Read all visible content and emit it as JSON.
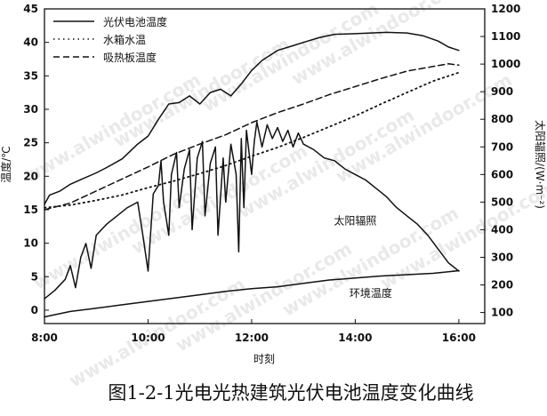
{
  "watermark": "www.alwindoor.com",
  "caption": "图1-2-1光电光热建筑光伏电池温度变化曲线",
  "chart_data": {
    "type": "line",
    "xlabel": "时刻",
    "ylabel_left": "温度/℃",
    "ylabel_right": "太阳辐照/(W·m⁻²)",
    "xlim": [
      8,
      16.5
    ],
    "ylim_left": [
      -2,
      45
    ],
    "ylim_right": [
      60,
      1200
    ],
    "x_ticks": [
      {
        "v": 8,
        "label": "8:00"
      },
      {
        "v": 10,
        "label": "10:00"
      },
      {
        "v": 12,
        "label": "12:00"
      },
      {
        "v": 14,
        "label": "14:00"
      },
      {
        "v": 16,
        "label": "16:00"
      }
    ],
    "y_ticks_left": [
      0,
      5,
      10,
      15,
      20,
      25,
      30,
      35,
      40,
      45
    ],
    "y_ticks_right": [
      100,
      200,
      300,
      400,
      500,
      600,
      700,
      800,
      900,
      1000,
      1100,
      1200
    ],
    "legend": [
      {
        "name": "光伏电池温度",
        "style": "solid"
      },
      {
        "name": "水箱水温",
        "style": "dotted"
      },
      {
        "name": "吸热板温度",
        "style": "dashed"
      }
    ],
    "annotations": [
      {
        "text": "太阳辐照",
        "x": 14.0,
        "y": 12.8
      },
      {
        "text": "环境温度",
        "x": 14.3,
        "y": 2.0
      }
    ],
    "series": [
      {
        "name": "光伏电池温度",
        "axis": "left",
        "style": "solid",
        "points": [
          [
            8.0,
            15.8
          ],
          [
            8.1,
            17.2
          ],
          [
            8.3,
            17.8
          ],
          [
            8.5,
            18.8
          ],
          [
            8.7,
            19.5
          ],
          [
            9.0,
            20.5
          ],
          [
            9.2,
            21.3
          ],
          [
            9.5,
            22.6
          ],
          [
            9.8,
            24.8
          ],
          [
            10.0,
            26.0
          ],
          [
            10.2,
            28.5
          ],
          [
            10.4,
            30.8
          ],
          [
            10.6,
            31.0
          ],
          [
            10.8,
            32.0
          ],
          [
            11.0,
            30.8
          ],
          [
            11.2,
            32.5
          ],
          [
            11.4,
            33.0
          ],
          [
            11.6,
            32.0
          ],
          [
            11.8,
            33.8
          ],
          [
            12.0,
            35.8
          ],
          [
            12.2,
            37.3
          ],
          [
            12.5,
            38.8
          ],
          [
            12.8,
            39.5
          ],
          [
            13.0,
            40.0
          ],
          [
            13.3,
            40.7
          ],
          [
            13.6,
            41.2
          ],
          [
            14.0,
            41.3
          ],
          [
            14.3,
            41.4
          ],
          [
            14.6,
            41.5
          ],
          [
            15.0,
            41.4
          ],
          [
            15.3,
            41.0
          ],
          [
            15.6,
            40.2
          ],
          [
            15.8,
            39.3
          ],
          [
            16.0,
            38.8
          ]
        ]
      },
      {
        "name": "水箱水温",
        "axis": "left",
        "style": "dotted",
        "points": [
          [
            8.0,
            15.3
          ],
          [
            8.5,
            15.7
          ],
          [
            9.0,
            16.4
          ],
          [
            9.5,
            17.2
          ],
          [
            10.0,
            18.3
          ],
          [
            10.5,
            19.3
          ],
          [
            11.0,
            20.4
          ],
          [
            11.5,
            21.6
          ],
          [
            12.0,
            23.0
          ],
          [
            12.5,
            24.3
          ],
          [
            13.0,
            25.8
          ],
          [
            13.5,
            27.4
          ],
          [
            14.0,
            29.0
          ],
          [
            14.5,
            30.8
          ],
          [
            15.0,
            32.5
          ],
          [
            15.5,
            34.2
          ],
          [
            16.0,
            35.5
          ]
        ]
      },
      {
        "name": "吸热板温度",
        "axis": "left",
        "style": "dashed",
        "points": [
          [
            8.0,
            15.0
          ],
          [
            8.5,
            16.0
          ],
          [
            9.0,
            17.8
          ],
          [
            9.5,
            19.6
          ],
          [
            10.0,
            21.4
          ],
          [
            10.5,
            23.3
          ],
          [
            11.0,
            24.8
          ],
          [
            11.5,
            26.2
          ],
          [
            12.0,
            28.0
          ],
          [
            12.5,
            29.5
          ],
          [
            13.0,
            30.8
          ],
          [
            13.5,
            32.2
          ],
          [
            14.0,
            33.4
          ],
          [
            14.5,
            34.6
          ],
          [
            15.0,
            35.7
          ],
          [
            15.5,
            36.4
          ],
          [
            15.8,
            36.8
          ],
          [
            16.0,
            36.6
          ]
        ]
      },
      {
        "name": "太阳辐照",
        "axis": "right",
        "style": "solid",
        "points": [
          [
            8.0,
            150
          ],
          [
            8.2,
            180
          ],
          [
            8.4,
            220
          ],
          [
            8.5,
            270
          ],
          [
            8.6,
            190
          ],
          [
            8.7,
            300
          ],
          [
            8.8,
            350
          ],
          [
            8.9,
            260
          ],
          [
            9.0,
            380
          ],
          [
            9.2,
            420
          ],
          [
            9.4,
            450
          ],
          [
            9.6,
            480
          ],
          [
            9.8,
            500
          ],
          [
            9.9,
            380
          ],
          [
            10.0,
            250
          ],
          [
            10.1,
            530
          ],
          [
            10.2,
            560
          ],
          [
            10.25,
            650
          ],
          [
            10.3,
            500
          ],
          [
            10.4,
            380
          ],
          [
            10.45,
            600
          ],
          [
            10.55,
            680
          ],
          [
            10.6,
            480
          ],
          [
            10.7,
            620
          ],
          [
            10.8,
            690
          ],
          [
            10.85,
            400
          ],
          [
            10.95,
            660
          ],
          [
            11.05,
            720
          ],
          [
            11.1,
            450
          ],
          [
            11.2,
            640
          ],
          [
            11.3,
            700
          ],
          [
            11.35,
            380
          ],
          [
            11.45,
            660
          ],
          [
            11.5,
            500
          ],
          [
            11.6,
            710
          ],
          [
            11.7,
            600
          ],
          [
            11.75,
            320
          ],
          [
            11.8,
            730
          ],
          [
            11.85,
            480
          ],
          [
            11.9,
            760
          ],
          [
            12.0,
            600
          ],
          [
            12.05,
            720
          ],
          [
            12.1,
            790
          ],
          [
            12.2,
            700
          ],
          [
            12.3,
            780
          ],
          [
            12.4,
            730
          ],
          [
            12.5,
            770
          ],
          [
            12.6,
            720
          ],
          [
            12.7,
            760
          ],
          [
            12.8,
            700
          ],
          [
            12.9,
            750
          ],
          [
            13.0,
            710
          ],
          [
            13.2,
            690
          ],
          [
            13.4,
            660
          ],
          [
            13.6,
            650
          ],
          [
            13.8,
            620
          ],
          [
            14.0,
            600
          ],
          [
            14.2,
            580
          ],
          [
            14.4,
            550
          ],
          [
            14.6,
            520
          ],
          [
            14.8,
            480
          ],
          [
            15.0,
            450
          ],
          [
            15.2,
            420
          ],
          [
            15.4,
            380
          ],
          [
            15.6,
            330
          ],
          [
            15.8,
            280
          ],
          [
            16.0,
            250
          ]
        ]
      },
      {
        "name": "环境温度",
        "axis": "left",
        "style": "solid",
        "points": [
          [
            8.0,
            -1.0
          ],
          [
            8.5,
            -0.2
          ],
          [
            9.0,
            0.3
          ],
          [
            9.5,
            0.8
          ],
          [
            10.0,
            1.3
          ],
          [
            10.5,
            1.8
          ],
          [
            11.0,
            2.3
          ],
          [
            11.5,
            2.8
          ],
          [
            12.0,
            3.2
          ],
          [
            12.5,
            3.5
          ],
          [
            13.0,
            4.0
          ],
          [
            13.5,
            4.5
          ],
          [
            14.0,
            4.8
          ],
          [
            14.5,
            5.1
          ],
          [
            15.0,
            5.3
          ],
          [
            15.5,
            5.5
          ],
          [
            16.0,
            5.9
          ]
        ]
      }
    ]
  }
}
